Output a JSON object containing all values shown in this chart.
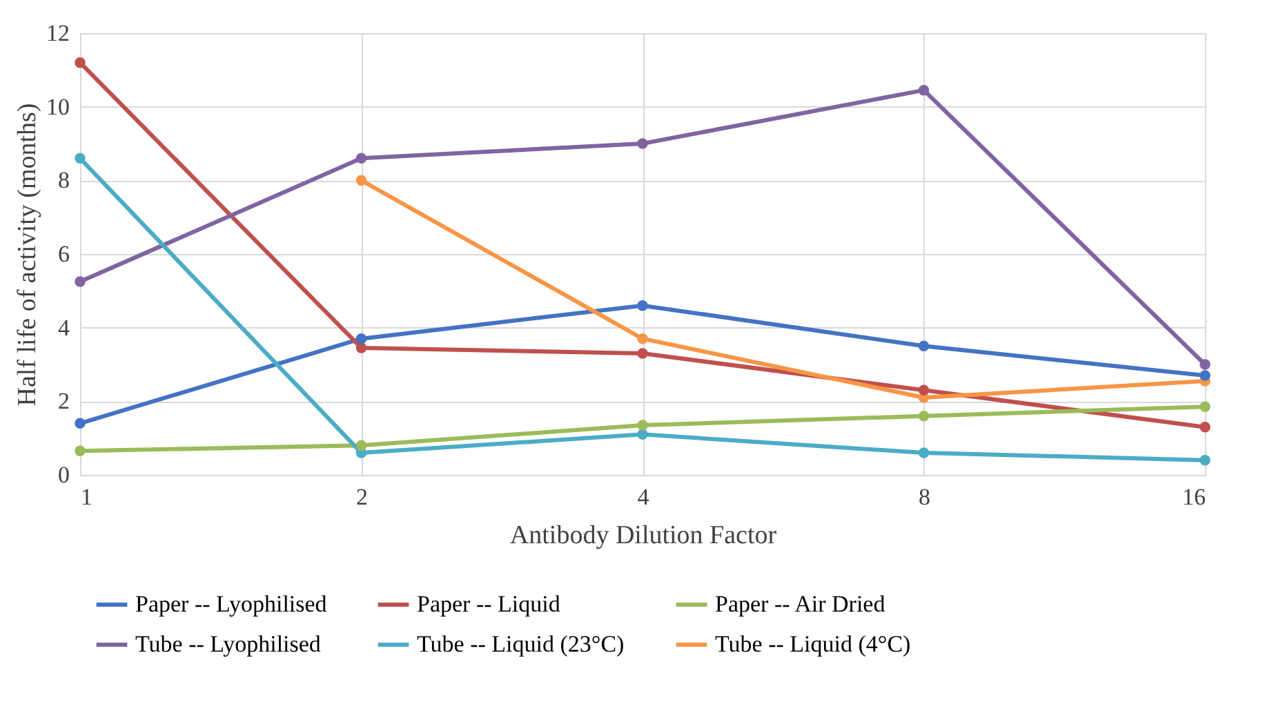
{
  "chart_data": {
    "type": "line",
    "xlabel": "Antibody Dilution Factor",
    "ylabel": "Half life of activity (months)",
    "categories": [
      "1",
      "2",
      "4",
      "8",
      "16"
    ],
    "ylim": [
      0,
      12
    ],
    "yticks": [
      0,
      2,
      4,
      6,
      8,
      10,
      12
    ],
    "grid": true,
    "legend": "bottom",
    "marker": "circle",
    "line_style": "solid",
    "series": [
      {
        "name": "Paper -- Lyophilised",
        "color": "#4472c4",
        "values": [
          1.4,
          3.7,
          4.6,
          3.5,
          2.7
        ]
      },
      {
        "name": "Paper -- Liquid",
        "color": "#c0504d",
        "values": [
          11.2,
          3.45,
          3.3,
          2.3,
          1.3
        ]
      },
      {
        "name": "Paper -- Air Dried",
        "color": "#9bbb59",
        "values": [
          0.65,
          0.8,
          1.35,
          1.6,
          1.85
        ]
      },
      {
        "name": "Tube -- Lyophilised",
        "color": "#8064a2",
        "values": [
          5.25,
          8.6,
          9.0,
          10.45,
          3.0
        ]
      },
      {
        "name": "Tube -- Liquid (23°C)",
        "color": "#4bacc6",
        "values": [
          8.6,
          0.6,
          1.1,
          0.6,
          0.4
        ]
      },
      {
        "name": "Tube -- Liquid  (4°C)",
        "color": "#f79646",
        "values": [
          null,
          8.0,
          3.7,
          2.1,
          2.55
        ]
      }
    ]
  }
}
